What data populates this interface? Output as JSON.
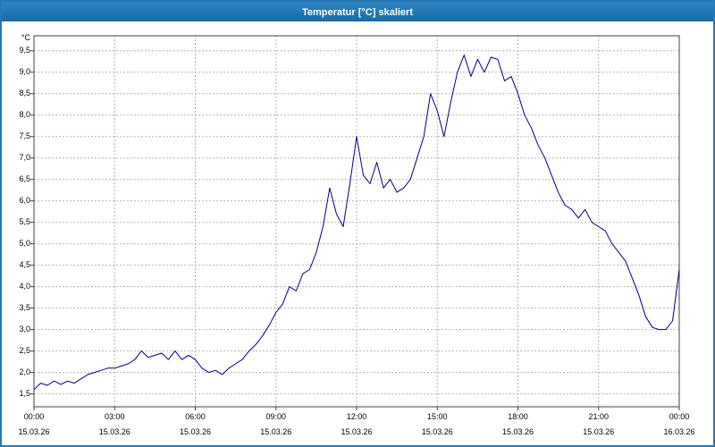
{
  "window": {
    "title": "Temperatur [°C] skaliert"
  },
  "chart_data": {
    "type": "line",
    "title": "Temperatur [°C] skaliert",
    "ylabel": "°C",
    "xlabel": "",
    "grid": "dashed",
    "legend": "none",
    "line_color": "#000080",
    "grid_color": "#b3b3b3",
    "border_color": "#404040",
    "axis_range": {
      "xmin": 0,
      "xmax": 24,
      "ymin": 1.2,
      "ymax": 9.85
    },
    "ylim": [
      1.5,
      9.5
    ],
    "ytick_step": 0.5,
    "yticks": [
      {
        "v": 9.5,
        "label": "9,5"
      },
      {
        "v": 9.0,
        "label": "9,0"
      },
      {
        "v": 8.5,
        "label": "8,5"
      },
      {
        "v": 8.0,
        "label": "8,0"
      },
      {
        "v": 7.5,
        "label": "7,5"
      },
      {
        "v": 7.0,
        "label": "7,0"
      },
      {
        "v": 6.5,
        "label": "6,5"
      },
      {
        "v": 6.0,
        "label": "6,0"
      },
      {
        "v": 5.5,
        "label": "5,5"
      },
      {
        "v": 5.0,
        "label": "5,0"
      },
      {
        "v": 4.5,
        "label": "4,5"
      },
      {
        "v": 4.0,
        "label": "4,0"
      },
      {
        "v": 3.5,
        "label": "3,5"
      },
      {
        "v": 3.0,
        "label": "3,0"
      },
      {
        "v": 2.5,
        "label": "2,5"
      },
      {
        "v": 2.0,
        "label": "2,0"
      },
      {
        "v": 1.5,
        "label": "1,5"
      }
    ],
    "xticks": [
      {
        "hour": 0,
        "time": "00:00",
        "date": "15.03.26"
      },
      {
        "hour": 3,
        "time": "03:00",
        "date": "15.03.26"
      },
      {
        "hour": 6,
        "time": "06:00",
        "date": "15.03.26"
      },
      {
        "hour": 9,
        "time": "09:00",
        "date": "15.03.26"
      },
      {
        "hour": 12,
        "time": "12:00",
        "date": "15.03.26"
      },
      {
        "hour": 15,
        "time": "15:00",
        "date": "15.03.26"
      },
      {
        "hour": 18,
        "time": "18:00",
        "date": "15.03.26"
      },
      {
        "hour": 21,
        "time": "21:00",
        "date": "15.03.26"
      },
      {
        "hour": 24,
        "time": "00:00",
        "date": "16.03.26"
      }
    ],
    "series": [
      {
        "name": "Temperatur",
        "x": [
          0,
          0.25,
          0.5,
          0.75,
          1,
          1.25,
          1.5,
          1.75,
          2,
          2.25,
          2.5,
          2.75,
          3,
          3.25,
          3.5,
          3.75,
          4,
          4.25,
          4.5,
          4.75,
          5,
          5.25,
          5.5,
          5.75,
          6,
          6.25,
          6.5,
          6.75,
          7,
          7.25,
          7.5,
          7.75,
          8,
          8.25,
          8.5,
          8.75,
          9,
          9.25,
          9.5,
          9.75,
          10,
          10.25,
          10.5,
          10.75,
          11,
          11.25,
          11.5,
          11.75,
          12,
          12.25,
          12.5,
          12.75,
          13,
          13.25,
          13.5,
          13.75,
          14,
          14.25,
          14.5,
          14.75,
          15,
          15.25,
          15.5,
          15.75,
          16,
          16.25,
          16.5,
          16.75,
          17,
          17.25,
          17.5,
          17.75,
          18,
          18.25,
          18.5,
          18.75,
          19,
          19.25,
          19.5,
          19.75,
          20,
          20.25,
          20.5,
          20.75,
          21,
          21.25,
          21.5,
          21.75,
          22,
          22.25,
          22.5,
          22.75,
          23,
          23.25,
          23.5,
          23.75,
          24
        ],
        "y": [
          1.6,
          1.75,
          1.7,
          1.8,
          1.72,
          1.8,
          1.75,
          1.85,
          1.95,
          2.0,
          2.05,
          2.1,
          2.1,
          2.15,
          2.2,
          2.3,
          2.5,
          2.35,
          2.4,
          2.45,
          2.3,
          2.5,
          2.3,
          2.4,
          2.3,
          2.1,
          2.0,
          2.05,
          1.95,
          2.1,
          2.2,
          2.3,
          2.5,
          2.65,
          2.85,
          3.1,
          3.4,
          3.6,
          4.0,
          3.9,
          4.3,
          4.4,
          4.8,
          5.4,
          6.3,
          5.7,
          5.4,
          6.4,
          7.5,
          6.6,
          6.4,
          6.9,
          6.3,
          6.5,
          6.2,
          6.3,
          6.5,
          7.0,
          7.5,
          8.5,
          8.1,
          7.5,
          8.3,
          9.0,
          9.4,
          8.9,
          9.3,
          9.0,
          9.35,
          9.3,
          8.8,
          8.9,
          8.5,
          8.0,
          7.7,
          7.3,
          7.0,
          6.6,
          6.2,
          5.9,
          5.8,
          5.6,
          5.8,
          5.5,
          5.4,
          5.3,
          5.0,
          4.8,
          4.6,
          4.2,
          3.8,
          3.3,
          3.05,
          3.0,
          3.0,
          3.2,
          4.4
        ]
      }
    ]
  }
}
